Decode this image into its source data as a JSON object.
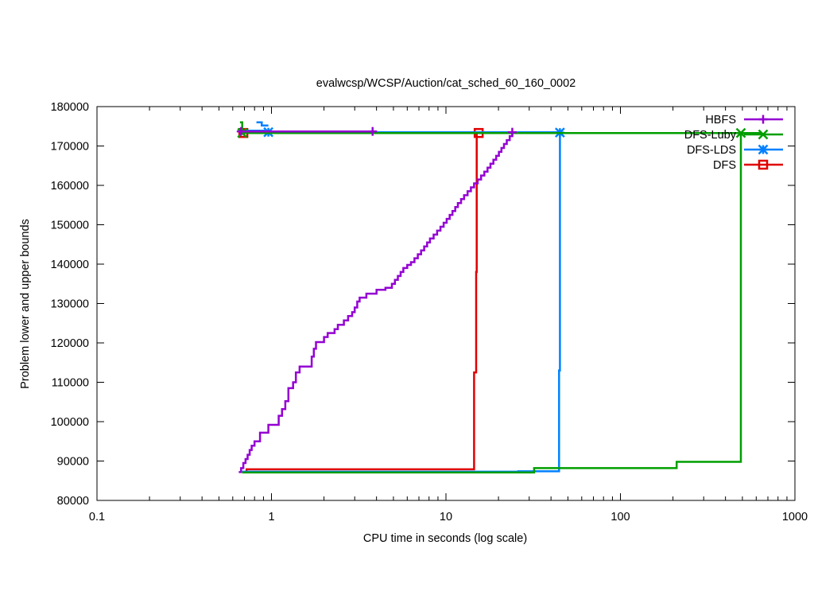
{
  "chart_data": {
    "type": "line",
    "title": "evalwcsp/WCSP/Auction/cat_sched_60_160_0002",
    "xlabel": "CPU time in seconds (log scale)",
    "ylabel": "Problem lower and upper bounds",
    "x_scale": "log",
    "xlim": [
      0.1,
      1000
    ],
    "ylim": [
      80000,
      180000
    ],
    "x_ticks": [
      0.1,
      1,
      10,
      100,
      1000
    ],
    "x_tick_labels": [
      "0.1",
      "1",
      "10",
      "100",
      "1000"
    ],
    "y_ticks": [
      80000,
      90000,
      100000,
      110000,
      120000,
      130000,
      140000,
      150000,
      160000,
      170000,
      180000
    ],
    "y_tick_labels": [
      "80000",
      "90000",
      "100000",
      "110000",
      "120000",
      "130000",
      "140000",
      "150000",
      "160000",
      "170000",
      "180000"
    ],
    "grid": false,
    "legend_position": "top-right",
    "series": [
      {
        "name": "HBFS",
        "color": "#9400d3",
        "marker": "plus",
        "lower": [
          [
            0.65,
            87200
          ],
          [
            0.67,
            88200
          ],
          [
            0.69,
            89500
          ],
          [
            0.71,
            90500
          ],
          [
            0.73,
            91600
          ],
          [
            0.75,
            92800
          ],
          [
            0.77,
            93900
          ],
          [
            0.8,
            95000
          ],
          [
            0.86,
            97200
          ],
          [
            0.96,
            99200
          ],
          [
            1.1,
            101500
          ],
          [
            1.15,
            103200
          ],
          [
            1.2,
            105200
          ],
          [
            1.25,
            108500
          ],
          [
            1.33,
            110000
          ],
          [
            1.38,
            112500
          ],
          [
            1.45,
            114000
          ],
          [
            1.7,
            116500
          ],
          [
            1.75,
            118500
          ],
          [
            1.8,
            120200
          ],
          [
            2.0,
            121500
          ],
          [
            2.1,
            122500
          ],
          [
            2.3,
            123500
          ],
          [
            2.4,
            124600
          ],
          [
            2.6,
            125700
          ],
          [
            2.75,
            126800
          ],
          [
            2.9,
            127800
          ],
          [
            3.0,
            129000
          ],
          [
            3.1,
            130500
          ],
          [
            3.2,
            131500
          ],
          [
            3.5,
            132500
          ],
          [
            4.0,
            133500
          ],
          [
            4.5,
            134000
          ],
          [
            4.9,
            135000
          ],
          [
            5.1,
            136000
          ],
          [
            5.3,
            137000
          ],
          [
            5.5,
            138000
          ],
          [
            5.7,
            139000
          ],
          [
            6.0,
            139800
          ],
          [
            6.3,
            140500
          ],
          [
            6.6,
            141500
          ],
          [
            6.9,
            142500
          ],
          [
            7.2,
            143500
          ],
          [
            7.5,
            144500
          ],
          [
            7.8,
            145500
          ],
          [
            8.1,
            146500
          ],
          [
            8.5,
            147500
          ],
          [
            8.9,
            148500
          ],
          [
            9.3,
            149500
          ],
          [
            9.7,
            150500
          ],
          [
            10.1,
            151500
          ],
          [
            10.5,
            152500
          ],
          [
            10.9,
            153500
          ],
          [
            11.3,
            154500
          ],
          [
            11.7,
            155500
          ],
          [
            12.2,
            156500
          ],
          [
            12.7,
            157500
          ],
          [
            13.3,
            158500
          ],
          [
            13.9,
            159500
          ],
          [
            14.5,
            160500
          ],
          [
            15.2,
            161500
          ],
          [
            15.9,
            162500
          ],
          [
            16.6,
            163500
          ],
          [
            17.3,
            164500
          ],
          [
            18.0,
            165500
          ],
          [
            18.7,
            166500
          ],
          [
            19.4,
            167500
          ],
          [
            20.1,
            168500
          ],
          [
            20.8,
            169500
          ],
          [
            21.5,
            170500
          ],
          [
            22.3,
            171500
          ],
          [
            23.2,
            172500
          ],
          [
            24.0,
            173300
          ]
        ],
        "upper": [
          [
            0.66,
            173700
          ],
          [
            3.8,
            173700
          ]
        ],
        "marker_points": [
          [
            0.67,
            173700
          ],
          [
            3.8,
            173700
          ],
          [
            24.0,
            173500
          ]
        ]
      },
      {
        "name": "DFS-Luby",
        "color": "#009e00",
        "marker": "cross",
        "lower": [
          [
            0.68,
            87100
          ],
          [
            32,
            87100
          ],
          [
            32,
            88200
          ],
          [
            210,
            88200
          ],
          [
            210,
            89800
          ],
          [
            490,
            89800
          ],
          [
            490,
            173300
          ],
          [
            650,
            173300
          ]
        ],
        "upper": [
          [
            0.66,
            176000
          ],
          [
            0.68,
            176000
          ],
          [
            0.68,
            173300
          ],
          [
            490,
            173300
          ]
        ],
        "marker_points": [
          [
            0.68,
            173300
          ],
          [
            490,
            173300
          ]
        ]
      },
      {
        "name": "DFS-LDS",
        "color": "#0080ff",
        "marker": "star",
        "lower": [
          [
            0.68,
            87300
          ],
          [
            26,
            87300
          ],
          [
            26,
            87400
          ],
          [
            44.5,
            87400
          ],
          [
            44.5,
            113000
          ],
          [
            45,
            113000
          ],
          [
            45,
            173300
          ]
        ],
        "upper": [
          [
            0.68,
            173900
          ],
          [
            0.96,
            173900
          ],
          [
            0.96,
            173500
          ],
          [
            45,
            173500
          ]
        ],
        "extra_upper": [
          [
            0.82,
            176000
          ],
          [
            0.88,
            176000
          ],
          [
            0.88,
            175200
          ],
          [
            0.96,
            175200
          ]
        ],
        "marker_points": [
          [
            0.96,
            173500
          ],
          [
            45,
            173400
          ]
        ]
      },
      {
        "name": "DFS",
        "color": "#e00000",
        "marker": "square",
        "lower": [
          [
            0.7,
            87200
          ],
          [
            0.72,
            87200
          ],
          [
            0.72,
            87900
          ],
          [
            14.5,
            87900
          ],
          [
            14.5,
            112500
          ],
          [
            14.9,
            112500
          ],
          [
            14.9,
            138000
          ],
          [
            15.0,
            138000
          ],
          [
            15.0,
            173300
          ]
        ],
        "upper": [
          [
            0.68,
            173300
          ],
          [
            15.4,
            173300
          ]
        ],
        "marker_points": [
          [
            0.69,
            173300
          ],
          [
            15.4,
            173300
          ]
        ]
      }
    ]
  }
}
